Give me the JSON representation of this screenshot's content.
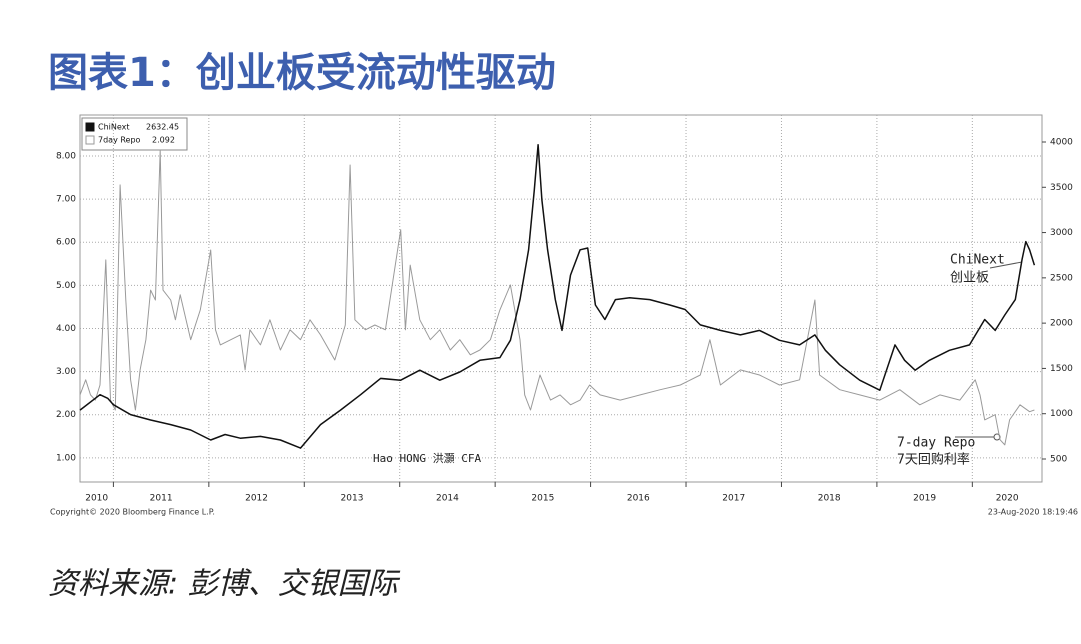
{
  "title": "图表1：创业板受流动性驱动",
  "source": "资料来源: 彭博、交银国际",
  "chart_data": {
    "type": "line",
    "copyright": "Copyright© 2020 Bloomberg Finance L.P.",
    "timestamp": "23-Aug-2020 18:19:46",
    "annotations": [
      "ChiNext",
      "创业板",
      "7-day Repo",
      "7天回购利率",
      "Hao HONG 洪灝 CFA"
    ],
    "xlim": [
      2010.65,
      2020.73
    ],
    "xticks": [
      2010,
      2011,
      2012,
      2013,
      2014,
      2015,
      2016,
      2017,
      2018,
      2019,
      2020
    ],
    "ylim": [
      0.44,
      8.95
    ],
    "yticks": [
      {
        "value": 1,
        "label": "1.00"
      },
      {
        "value": 2,
        "label": "2.00"
      },
      {
        "value": 3,
        "label": "3.00"
      },
      {
        "value": 4,
        "label": "4.00"
      },
      {
        "value": 5,
        "label": "5.00"
      },
      {
        "value": 6,
        "label": "6.00"
      },
      {
        "value": 7,
        "label": "7.00"
      },
      {
        "value": 8,
        "label": "8.00"
      }
    ],
    "y2lim": [
      246,
      4298
    ],
    "y2ticks": [
      500,
      1000,
      1500,
      2000,
      2500,
      3000,
      3500,
      4000
    ],
    "grid": true,
    "legend": "upper left",
    "series": [
      {
        "name": "ChiNext",
        "last_value": 2632.45,
        "color": "#111111",
        "axis": "y2",
        "x": [
          2010.65,
          2010.86,
          2010.94,
          2011.0,
          2011.18,
          2011.39,
          2011.6,
          2011.81,
          2012.02,
          2012.17,
          2012.33,
          2012.54,
          2012.75,
          2012.96,
          2013.17,
          2013.38,
          2013.59,
          2013.8,
          2014.01,
          2014.21,
          2014.42,
          2014.63,
          2014.84,
          2015.05,
          2015.16,
          2015.26,
          2015.35,
          2015.41,
          2015.45,
          2015.49,
          2015.55,
          2015.63,
          2015.7,
          2015.79,
          2015.89,
          2015.97,
          2016.05,
          2016.15,
          2016.26,
          2016.41,
          2016.62,
          2016.83,
          2016.99,
          2017.15,
          2017.36,
          2017.57,
          2017.77,
          2017.98,
          2018.19,
          2018.35,
          2018.46,
          2018.61,
          2018.82,
          2019.03,
          2019.19,
          2019.29,
          2019.4,
          2019.55,
          2019.76,
          2019.97,
          2020.13,
          2020.24,
          2020.34,
          2020.45,
          2020.52,
          2020.56,
          2020.6,
          2020.65
        ],
        "values": [
          1040,
          1210,
          1170,
          1100,
          990,
          930,
          880,
          820,
          710,
          770,
          730,
          750,
          710,
          620,
          880,
          1040,
          1210,
          1390,
          1370,
          1480,
          1370,
          1460,
          1590,
          1620,
          1810,
          2260,
          2810,
          3470,
          3970,
          3360,
          2810,
          2260,
          1920,
          2530,
          2810,
          2830,
          2200,
          2040,
          2260,
          2280,
          2260,
          2200,
          2150,
          1980,
          1920,
          1870,
          1920,
          1810,
          1760,
          1870,
          1700,
          1540,
          1370,
          1260,
          1760,
          1590,
          1480,
          1590,
          1700,
          1760,
          2040,
          1920,
          2090,
          2260,
          2700,
          2900,
          2810,
          2640
        ]
      },
      {
        "name": "7day Repo",
        "last_value": 2.092,
        "color": "#9a9a9a",
        "x": [
          2010.65,
          2010.71,
          2010.76,
          2010.81,
          2010.86,
          2010.92,
          2010.97,
          2011.02,
          2011.07,
          2011.13,
          2011.18,
          2011.23,
          2011.28,
          2011.34,
          2011.39,
          2011.44,
          2011.49,
          2011.52,
          2011.6,
          2011.65,
          2011.7,
          2011.81,
          2011.91,
          2012.02,
          2012.07,
          2012.12,
          2012.23,
          2012.33,
          2012.38,
          2012.43,
          2012.54,
          2012.64,
          2012.75,
          2012.85,
          2012.96,
          2013.06,
          2013.17,
          2013.32,
          2013.43,
          2013.48,
          2013.53,
          2013.64,
          2013.74,
          2013.85,
          2014.01,
          2014.06,
          2014.11,
          2014.21,
          2014.32,
          2014.42,
          2014.53,
          2014.63,
          2014.74,
          2014.84,
          2014.95,
          2015.05,
          2015.16,
          2015.26,
          2015.31,
          2015.37,
          2015.47,
          2015.58,
          2015.68,
          2015.79,
          2015.89,
          2015.99,
          2016.1,
          2016.31,
          2016.52,
          2016.73,
          2016.94,
          2017.15,
          2017.25,
          2017.36,
          2017.57,
          2017.77,
          2017.98,
          2018.19,
          2018.35,
          2018.4,
          2018.61,
          2018.82,
          2019.03,
          2019.24,
          2019.45,
          2019.66,
          2019.87,
          2020.03,
          2020.08,
          2020.13,
          2020.24,
          2020.29,
          2020.34,
          2020.39,
          2020.5,
          2020.6,
          2020.65
        ],
        "values": [
          2.46,
          2.81,
          2.46,
          2.34,
          2.69,
          5.59,
          2.34,
          2.11,
          7.33,
          4.66,
          2.81,
          2.11,
          3.04,
          3.74,
          4.89,
          4.66,
          8.14,
          4.89,
          4.66,
          4.2,
          4.78,
          3.74,
          4.43,
          5.82,
          3.97,
          3.62,
          3.74,
          3.85,
          3.04,
          3.97,
          3.62,
          4.2,
          3.5,
          3.97,
          3.74,
          4.2,
          3.85,
          3.27,
          4.08,
          7.79,
          4.2,
          3.97,
          4.08,
          3.97,
          6.29,
          3.97,
          5.47,
          4.2,
          3.74,
          3.97,
          3.5,
          3.74,
          3.39,
          3.5,
          3.74,
          4.43,
          5.01,
          3.74,
          2.46,
          2.11,
          2.92,
          2.34,
          2.46,
          2.23,
          2.34,
          2.69,
          2.46,
          2.34,
          2.46,
          2.58,
          2.69,
          2.92,
          3.74,
          2.69,
          3.04,
          2.92,
          2.69,
          2.81,
          4.66,
          2.92,
          2.58,
          2.46,
          2.34,
          2.58,
          2.23,
          2.46,
          2.34,
          2.81,
          2.46,
          1.88,
          2.0,
          1.42,
          1.3,
          1.88,
          2.23,
          2.07,
          2.11
        ]
      }
    ]
  }
}
